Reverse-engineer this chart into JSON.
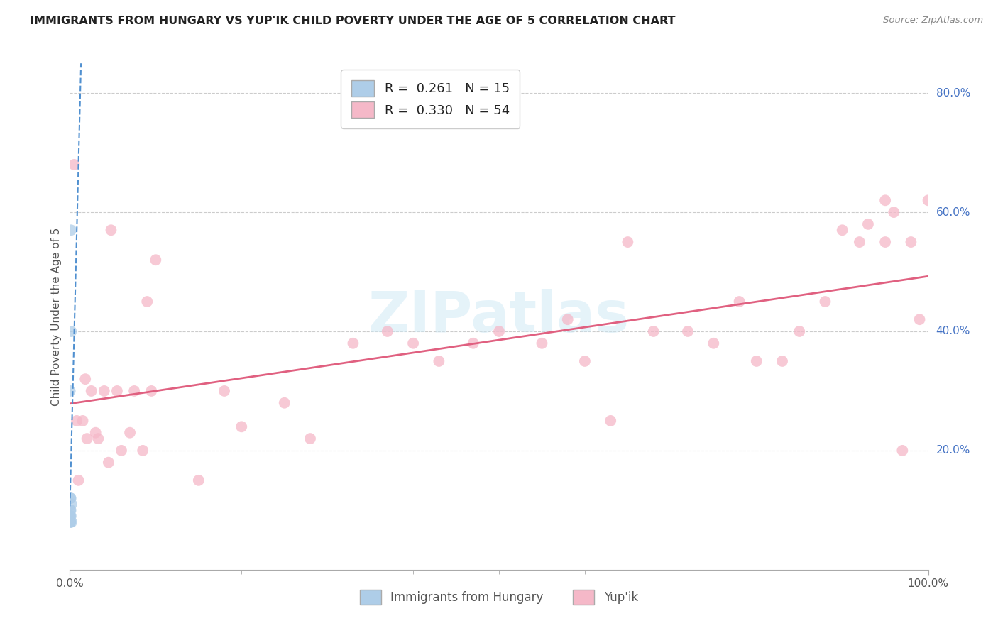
{
  "title": "IMMIGRANTS FROM HUNGARY VS YUP'IK CHILD POVERTY UNDER THE AGE OF 5 CORRELATION CHART",
  "source": "Source: ZipAtlas.com",
  "ylabel": "Child Poverty Under the Age of 5",
  "background_color": "#ffffff",
  "legend1_label": "R =  0.261   N = 15",
  "legend2_label": "R =  0.330   N = 54",
  "legend1_color": "#aecde8",
  "legend2_color": "#f5b8c8",
  "trendline1_color": "#5090d0",
  "trendline2_color": "#e06080",
  "watermark": "ZIPatlas",
  "hungary_x": [
    0.0002,
    0.0003,
    0.0004,
    0.0005,
    0.0005,
    0.0006,
    0.0007,
    0.0008,
    0.001,
    0.001,
    0.0012,
    0.0014,
    0.0016,
    0.002,
    0.002
  ],
  "hungary_y": [
    0.3,
    0.09,
    0.08,
    0.1,
    0.09,
    0.08,
    0.12,
    0.08,
    0.1,
    0.12,
    0.09,
    0.57,
    0.4,
    0.08,
    0.11
  ],
  "yupik_x": [
    0.005,
    0.008,
    0.01,
    0.015,
    0.018,
    0.02,
    0.025,
    0.03,
    0.033,
    0.04,
    0.045,
    0.048,
    0.055,
    0.06,
    0.07,
    0.075,
    0.085,
    0.09,
    0.095,
    0.1,
    0.15,
    0.18,
    0.2,
    0.25,
    0.28,
    0.33,
    0.37,
    0.4,
    0.43,
    0.47,
    0.5,
    0.55,
    0.58,
    0.6,
    0.63,
    0.65,
    0.68,
    0.72,
    0.75,
    0.78,
    0.8,
    0.83,
    0.85,
    0.88,
    0.9,
    0.92,
    0.93,
    0.95,
    0.95,
    0.96,
    0.97,
    0.98,
    0.99,
    1.0
  ],
  "yupik_y": [
    0.68,
    0.25,
    0.15,
    0.25,
    0.32,
    0.22,
    0.3,
    0.23,
    0.22,
    0.3,
    0.18,
    0.57,
    0.3,
    0.2,
    0.23,
    0.3,
    0.2,
    0.45,
    0.3,
    0.52,
    0.15,
    0.3,
    0.24,
    0.28,
    0.22,
    0.38,
    0.4,
    0.38,
    0.35,
    0.38,
    0.4,
    0.38,
    0.42,
    0.35,
    0.25,
    0.55,
    0.4,
    0.4,
    0.38,
    0.45,
    0.35,
    0.35,
    0.4,
    0.45,
    0.57,
    0.55,
    0.58,
    0.55,
    0.62,
    0.6,
    0.2,
    0.55,
    0.42,
    0.62
  ],
  "xlim": [
    0.0,
    1.0
  ],
  "ylim": [
    0.0,
    0.85
  ],
  "right_yticks": [
    0.2,
    0.4,
    0.6,
    0.8
  ],
  "right_ytick_labels": [
    "20.0%",
    "40.0%",
    "60.0%",
    "80.0%"
  ],
  "xtick_left": 0.0,
  "xtick_right": 1.0,
  "grid_color": "#cccccc",
  "dot_size": 130,
  "dot_alpha": 0.75
}
